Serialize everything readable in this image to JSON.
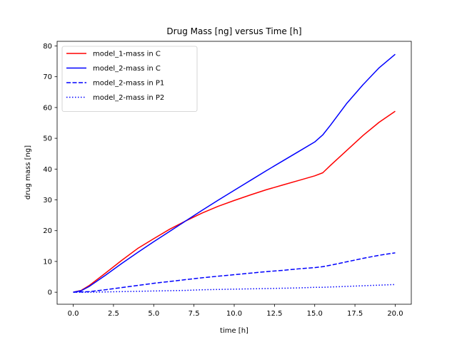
{
  "chart_data": {
    "type": "line",
    "title": "Drug Mass [ng] versus Time [h]",
    "xlabel": "time [h]",
    "ylabel": "drug mass [ng]",
    "xlim": [
      -1.0,
      21.0
    ],
    "ylim": [
      -3.9,
      81.5
    ],
    "xticks": [
      0.0,
      2.5,
      5.0,
      7.5,
      10.0,
      12.5,
      15.0,
      17.5,
      20.0
    ],
    "xtick_labels": [
      "0.0",
      "2.5",
      "5.0",
      "7.5",
      "10.0",
      "12.5",
      "15.0",
      "17.5",
      "20.0"
    ],
    "yticks": [
      0,
      10,
      20,
      30,
      40,
      50,
      60,
      70,
      80
    ],
    "ytick_labels": [
      "0",
      "10",
      "20",
      "30",
      "40",
      "50",
      "60",
      "70",
      "80"
    ],
    "grid": false,
    "legend_position": "top-left",
    "x": [
      0,
      0.5,
      1,
      2,
      3,
      4,
      5,
      6,
      7,
      8,
      9,
      10,
      11,
      12,
      13,
      14,
      15,
      15.5,
      16,
      17,
      18,
      19,
      20
    ],
    "series": [
      {
        "name": "model_1-mass in C",
        "color": "#ff0000",
        "linestyle": "solid",
        "values": [
          0.0,
          0.6,
          2.2,
          6.2,
          10.3,
          14.2,
          17.4,
          20.5,
          23.2,
          25.7,
          27.9,
          29.8,
          31.6,
          33.3,
          34.8,
          36.3,
          37.8,
          38.8,
          41.3,
          46.1,
          50.9,
          55.2,
          58.8
        ]
      },
      {
        "name": "model_2-mass in C",
        "color": "#0000ff",
        "linestyle": "solid",
        "values": [
          0.0,
          0.5,
          1.9,
          5.5,
          9.3,
          12.9,
          16.4,
          19.8,
          23.2,
          26.6,
          29.9,
          33.1,
          36.3,
          39.5,
          42.6,
          45.7,
          48.8,
          51.1,
          54.4,
          61.4,
          67.4,
          72.9,
          77.3
        ]
      },
      {
        "name": "model_2-mass in P1",
        "color": "#0000ff",
        "linestyle": "dashed",
        "values": [
          0.0,
          0.1,
          0.2,
          0.8,
          1.5,
          2.2,
          2.9,
          3.5,
          4.1,
          4.7,
          5.2,
          5.7,
          6.2,
          6.7,
          7.1,
          7.6,
          8.0,
          8.3,
          8.8,
          9.9,
          11.0,
          12.0,
          12.8
        ]
      },
      {
        "name": "model_2-mass in P2",
        "color": "#0000ff",
        "linestyle": "dotted",
        "values": [
          0.0,
          0.0,
          0.0,
          0.1,
          0.2,
          0.3,
          0.4,
          0.5,
          0.6,
          0.8,
          0.9,
          1.0,
          1.1,
          1.2,
          1.3,
          1.4,
          1.6,
          1.6,
          1.7,
          1.9,
          2.1,
          2.3,
          2.5
        ]
      }
    ]
  }
}
